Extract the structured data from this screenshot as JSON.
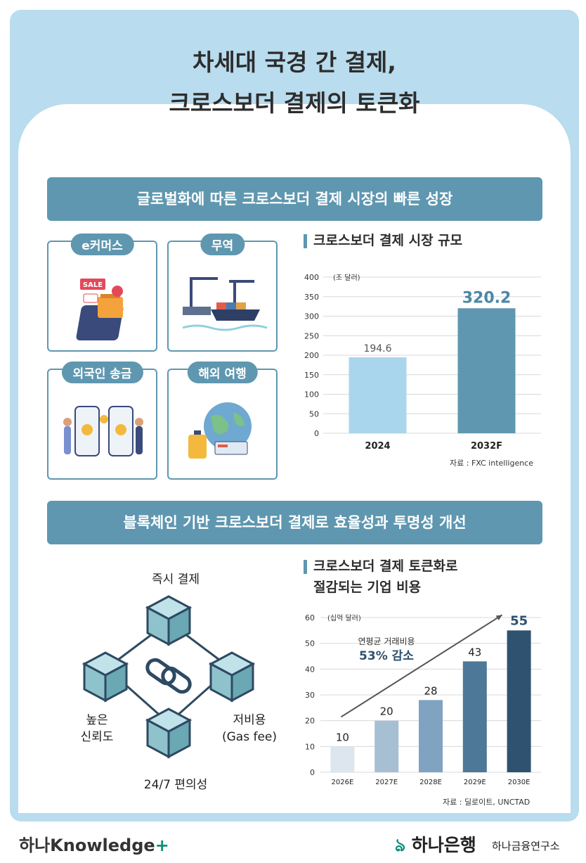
{
  "title": {
    "line1": "차세대 국경 간 결제,",
    "line2": "크로스보더 결제의 토큰화"
  },
  "section1": {
    "banner": "글로벌화에 따른 크로스보더 결제 시장의 빠른 성장"
  },
  "categories": [
    {
      "label": "e커머스",
      "icon": "shopping-cart-icon"
    },
    {
      "label": "무역",
      "icon": "cargo-ship-icon"
    },
    {
      "label": "외국인 송금",
      "icon": "money-transfer-icon"
    },
    {
      "label": "해외 여행",
      "icon": "travel-globe-icon"
    }
  ],
  "section2": {
    "banner": "블록체인 기반 크로스보더 결제로 효율성과 투명성 개선"
  },
  "features": {
    "top": "즉시 결제",
    "right_line1": "저비용",
    "right_line2": "(Gas fee)",
    "bottom": "24/7 편의성",
    "left_line1": "높은",
    "left_line2": "신뢰도"
  },
  "chart_data": [
    {
      "type": "bar",
      "title": "크로스보더 결제 시장 규모",
      "unit": "(조 달러)",
      "categories": [
        "2024",
        "2032F"
      ],
      "values": [
        194.6,
        320.2
      ],
      "value_labels": [
        "194.6",
        "320.2"
      ],
      "ylim": [
        0,
        400
      ],
      "yticks": [
        0,
        50,
        100,
        150,
        200,
        250,
        300,
        350,
        400
      ],
      "colors": [
        "#a9d6ec",
        "#5f97b0"
      ],
      "source": "자료 : FXC intelligence"
    },
    {
      "type": "bar",
      "title_line1": "크로스보더 결제 토큰화로",
      "title_line2": "절감되는 기업 비용",
      "unit": "(십억 달러)",
      "categories": [
        "2026E",
        "2027E",
        "2028E",
        "2029E",
        "2030E"
      ],
      "values": [
        10,
        20,
        28,
        43,
        55
      ],
      "value_labels": [
        "10",
        "20",
        "28",
        "43",
        "55"
      ],
      "ylim": [
        0,
        60
      ],
      "yticks": [
        0,
        10,
        20,
        30,
        40,
        50,
        60
      ],
      "colors": [
        "#dde6ee",
        "#a6bfd3",
        "#7fa3c0",
        "#4d7898",
        "#2e5270"
      ],
      "annotation_line1": "연평균 거래비용",
      "annotation_line2": "53% 감소",
      "source": "자료 : 딜로이트, UNCTAD"
    }
  ],
  "footer": {
    "brand_left_prefix": "하나",
    "brand_left_main": "Knowledge",
    "brand_left_plus": "+",
    "brand_right": "하나은행",
    "brand_right_sub": "하나금융연구소"
  }
}
